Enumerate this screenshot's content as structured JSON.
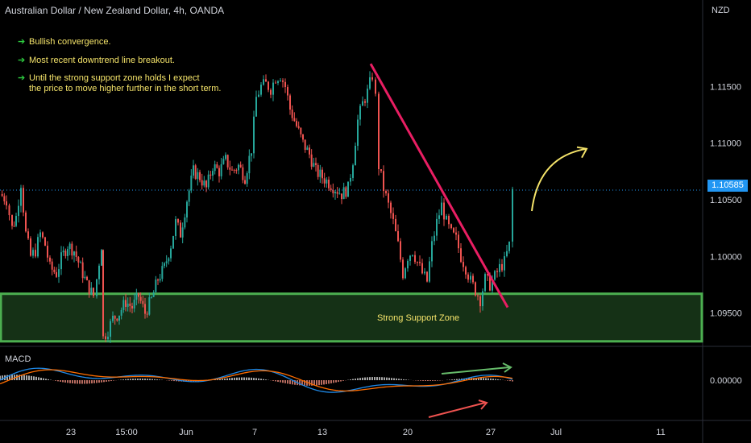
{
  "header": {
    "title": "Australian Dollar / New Zealand Dollar, 4h, OANDA"
  },
  "axis": {
    "currency": "NZD"
  },
  "annotations": [
    {
      "text": "Bullish convergence."
    },
    {
      "text": "Most recent downtrend line breakout."
    },
    {
      "text": "Until the strong support zone holds I expect"
    },
    {
      "text": "the price to move higher further in the short term."
    }
  ],
  "zone_label": "Strong Support Zone",
  "macd_label": "MACD",
  "last_price": "1.10585",
  "colors": {
    "up": "#26a69a",
    "down": "#ef5350",
    "zone": "#4caf50",
    "trend": "#e91e63",
    "arrow": "#f5e46a",
    "macd": "#1e88e5",
    "signal": "#ff6d00"
  },
  "chart_data": [
    {
      "type": "candlestick",
      "title": "Australian Dollar / New Zealand Dollar, 4h, OANDA",
      "ylabel": "NZD",
      "ylim": [
        1.0922,
        1.1205
      ],
      "y_ticks": [
        "1.09500",
        "1.10000",
        "1.10500",
        "1.11000",
        "1.11500"
      ],
      "x_ticks": [
        "23",
        "15:00",
        "Jun",
        "7",
        "13",
        "20",
        "27",
        "Jul",
        "11"
      ],
      "close_path": [
        [
          0,
          1.1055
        ],
        [
          8,
          1.105
        ],
        [
          15,
          1.1025
        ],
        [
          20,
          1.1035
        ],
        [
          26,
          1.1065
        ],
        [
          32,
          1.102
        ],
        [
          38,
          1.1
        ],
        [
          44,
          1.1005
        ],
        [
          50,
          1.102
        ],
        [
          56,
          1.101
        ],
        [
          62,
          1.099
        ],
        [
          70,
          1.0985
        ],
        [
          76,
          1.0998
        ],
        [
          84,
          1.101
        ],
        [
          92,
          1.1005
        ],
        [
          100,
          1.099
        ],
        [
          108,
          1.0975
        ],
        [
          116,
          1.0965
        ],
        [
          120,
          1.098
        ],
        [
          126,
          1.101
        ],
        [
          128,
          1.0928
        ],
        [
          134,
          1.0935
        ],
        [
          140,
          1.0945
        ],
        [
          148,
          1.095
        ],
        [
          156,
          1.096
        ],
        [
          164,
          1.0955
        ],
        [
          172,
          1.0965
        ],
        [
          180,
          1.095
        ],
        [
          188,
          1.0962
        ],
        [
          196,
          1.098
        ],
        [
          204,
          1.099
        ],
        [
          212,
          1.101
        ],
        [
          218,
          1.103
        ],
        [
          224,
          1.102
        ],
        [
          232,
          1.105
        ],
        [
          240,
          1.1075
        ],
        [
          248,
          1.107
        ],
        [
          256,
          1.106
        ],
        [
          264,
          1.108
        ],
        [
          272,
          1.1075
        ],
        [
          280,
          1.1085
        ],
        [
          288,
          1.1075
        ],
        [
          296,
          1.108
        ],
        [
          304,
          1.107
        ],
        [
          312,
          1.1095
        ],
        [
          318,
          1.114
        ],
        [
          324,
          1.115
        ],
        [
          330,
          1.1152
        ],
        [
          336,
          1.1148
        ],
        [
          342,
          1.1158
        ],
        [
          348,
          1.116
        ],
        [
          354,
          1.115
        ],
        [
          360,
          1.113
        ],
        [
          368,
          1.1115
        ],
        [
          376,
          1.11
        ],
        [
          384,
          1.109
        ],
        [
          392,
          1.1075
        ],
        [
          400,
          1.107
        ],
        [
          408,
          1.1065
        ],
        [
          416,
          1.106
        ],
        [
          424,
          1.1055
        ],
        [
          432,
          1.106
        ],
        [
          438,
          1.1085
        ],
        [
          444,
          1.112
        ],
        [
          450,
          1.1135
        ],
        [
          456,
          1.1145
        ],
        [
          462,
          1.116
        ],
        [
          466,
          1.114
        ],
        [
          470,
          1.108
        ],
        [
          476,
          1.106
        ],
        [
          482,
          1.1045
        ],
        [
          488,
          1.103
        ],
        [
          494,
          1.101
        ],
        [
          500,
          1.0985
        ],
        [
          506,
          1.1
        ],
        [
          512,
          1.1005
        ],
        [
          518,
          1.0995
        ],
        [
          524,
          1.0985
        ],
        [
          530,
          1.0978
        ],
        [
          536,
          1.101
        ],
        [
          542,
          1.103
        ],
        [
          548,
          1.1045
        ],
        [
          554,
          1.103
        ],
        [
          560,
          1.102
        ],
        [
          566,
          1.1015
        ],
        [
          572,
          1.1
        ],
        [
          578,
          1.099
        ],
        [
          584,
          1.0978
        ],
        [
          590,
          1.097
        ],
        [
          596,
          1.0962
        ],
        [
          602,
          1.098
        ],
        [
          608,
          1.0975
        ],
        [
          614,
          1.0982
        ],
        [
          620,
          1.099
        ],
        [
          626,
          1.0995
        ],
        [
          632,
          1.101
        ],
        [
          636,
          1.10585
        ]
      ],
      "horizontal_lines": [
        {
          "y": 1.10585,
          "label": "1.10585",
          "style": "dotted"
        }
      ],
      "zones": [
        {
          "from": 1.0925,
          "to": 1.0967,
          "label": "Strong Support Zone"
        }
      ],
      "trendlines": [
        {
          "from": [
            460,
            1.117
          ],
          "to": [
            630,
            1.0955
          ]
        }
      ],
      "arrows": [
        {
          "type": "curved-up",
          "from": [
            660,
            1.104
          ],
          "to": [
            728,
            1.1095
          ]
        }
      ]
    },
    {
      "type": "macd",
      "title": "MACD",
      "y_ticks": [
        "0.00000"
      ],
      "grid": false
    }
  ]
}
